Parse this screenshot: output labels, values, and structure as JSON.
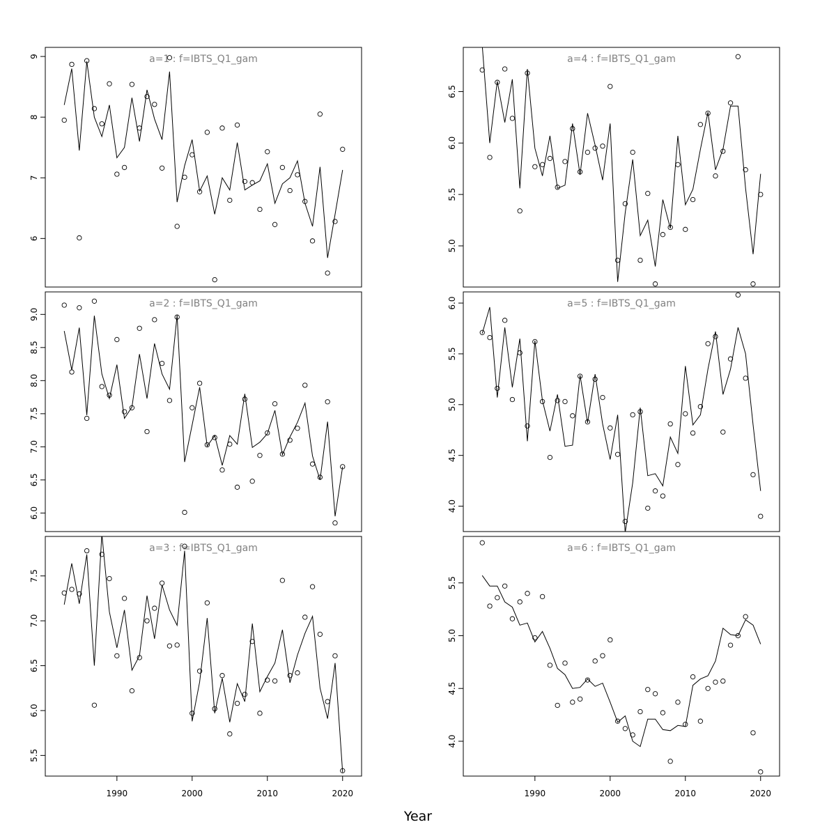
{
  "xlabel": "Year",
  "colors": {
    "title": "#808080",
    "line": "#000000",
    "point": "#000000",
    "axis": "#000000"
  },
  "chart_data": [
    {
      "type": "line",
      "title": "a=1  :  f=IBTS_Q1_gam",
      "xlim": [
        1983,
        2020
      ],
      "ylim": [
        5.2,
        9.15
      ],
      "yticks": [
        "6",
        "7",
        "8",
        "9"
      ],
      "xticks": [],
      "x": [
        1983,
        1984,
        1985,
        1986,
        1987,
        1988,
        1989,
        1990,
        1991,
        1992,
        1993,
        1994,
        1995,
        1996,
        1997,
        1998,
        1999,
        2000,
        2001,
        2002,
        2003,
        2004,
        2005,
        2006,
        2007,
        2008,
        2009,
        2010,
        2011,
        2012,
        2013,
        2014,
        2015,
        2016,
        2017,
        2018,
        2019,
        2020
      ],
      "series": [
        {
          "type": "line",
          "values": [
            8.2,
            8.8,
            7.45,
            8.92,
            8.0,
            7.68,
            8.2,
            7.33,
            7.5,
            8.32,
            7.6,
            8.45,
            7.97,
            7.63,
            8.75,
            6.6,
            7.2,
            7.63,
            6.78,
            7.03,
            6.4,
            7.0,
            6.8,
            7.58,
            6.8,
            6.88,
            6.95,
            7.23,
            6.58,
            6.9,
            7.0,
            7.28,
            6.58,
            6.2,
            7.18,
            5.68,
            6.4,
            7.13
          ]
        },
        {
          "type": "scatter",
          "values": [
            7.95,
            8.87,
            6.01,
            8.93,
            8.14,
            7.89,
            8.55,
            7.06,
            7.17,
            8.54,
            7.82,
            8.34,
            8.21,
            7.16,
            8.98,
            6.2,
            7.01,
            7.38,
            6.77,
            7.75,
            5.32,
            7.82,
            6.63,
            7.87,
            6.94,
            6.92,
            6.48,
            7.43,
            6.23,
            7.17,
            6.79,
            7.05,
            6.61,
            5.96,
            8.05,
            5.43,
            6.28,
            7.47
          ]
        }
      ]
    },
    {
      "type": "line",
      "title": "a=4  :  f=IBTS_Q1_gam",
      "xlim": [
        1983,
        2020
      ],
      "ylim": [
        4.6,
        6.93
      ],
      "yticks": [
        "5.0",
        "5.5",
        "6.0",
        "6.5"
      ],
      "xticks": [],
      "x": [
        1983,
        1984,
        1985,
        1986,
        1987,
        1988,
        1989,
        1990,
        1991,
        1992,
        1993,
        1994,
        1995,
        1996,
        1997,
        1998,
        1999,
        2000,
        2001,
        2002,
        2003,
        2004,
        2005,
        2006,
        2007,
        2008,
        2009,
        2010,
        2011,
        2012,
        2013,
        2014,
        2015,
        2016,
        2017,
        2018,
        2019,
        2020
      ],
      "series": [
        {
          "type": "line",
          "values": [
            6.95,
            6.0,
            6.6,
            6.2,
            6.62,
            5.56,
            6.72,
            5.95,
            5.68,
            6.07,
            5.56,
            5.59,
            6.19,
            5.69,
            6.29,
            5.98,
            5.64,
            6.19,
            4.65,
            5.32,
            5.84,
            5.1,
            5.25,
            4.8,
            5.45,
            5.17,
            6.07,
            5.4,
            5.55,
            5.94,
            6.3,
            5.74,
            5.94,
            6.36,
            6.36,
            5.56,
            4.92,
            5.7
          ]
        },
        {
          "type": "scatter",
          "values": [
            6.71,
            5.86,
            6.59,
            6.72,
            6.24,
            5.34,
            6.68,
            5.77,
            5.79,
            5.85,
            5.57,
            5.82,
            6.14,
            5.72,
            5.91,
            5.95,
            5.97,
            6.55,
            4.86,
            5.41,
            5.91,
            4.86,
            5.51,
            4.63,
            5.11,
            5.18,
            5.79,
            5.16,
            5.45,
            6.18,
            6.29,
            5.68,
            5.92,
            6.39,
            6.84,
            5.74,
            4.63,
            5.5
          ]
        }
      ]
    },
    {
      "type": "line",
      "title": "a=2  :  f=IBTS_Q1_gam",
      "xlim": [
        1983,
        2020
      ],
      "ylim": [
        5.72,
        9.34
      ],
      "yticks": [
        "6.0",
        "6.5",
        "7.0",
        "7.5",
        "8.0",
        "8.5",
        "9.0"
      ],
      "xticks": [],
      "x": [
        1983,
        1984,
        1985,
        1986,
        1987,
        1988,
        1989,
        1990,
        1991,
        1992,
        1993,
        1994,
        1995,
        1996,
        1997,
        1998,
        1999,
        2000,
        2001,
        2002,
        2003,
        2004,
        2005,
        2006,
        2007,
        2008,
        2009,
        2010,
        2011,
        2012,
        2013,
        2014,
        2015,
        2016,
        2017,
        2018,
        2019,
        2020
      ],
      "series": [
        {
          "type": "line",
          "values": [
            8.75,
            8.16,
            8.8,
            7.48,
            8.98,
            8.1,
            7.73,
            8.24,
            7.43,
            7.6,
            8.4,
            7.73,
            8.56,
            8.1,
            7.87,
            8.99,
            6.77,
            7.33,
            7.9,
            7.01,
            7.17,
            6.72,
            7.17,
            7.04,
            7.8,
            6.99,
            7.07,
            7.2,
            7.55,
            6.88,
            7.15,
            7.37,
            7.66,
            6.86,
            6.5,
            7.38,
            5.95,
            6.7
          ]
        },
        {
          "type": "scatter",
          "values": [
            9.14,
            8.13,
            9.1,
            7.43,
            9.2,
            7.91,
            7.78,
            8.62,
            7.53,
            7.59,
            8.79,
            7.23,
            8.92,
            8.26,
            7.7,
            8.96,
            6.01,
            7.59,
            7.96,
            7.03,
            7.14,
            6.65,
            7.04,
            6.39,
            7.72,
            6.48,
            6.87,
            7.21,
            7.65,
            6.89,
            7.1,
            7.28,
            7.93,
            6.74,
            6.54,
            7.68,
            5.85,
            6.7
          ]
        }
      ]
    },
    {
      "type": "line",
      "title": "a=5  :  f=IBTS_Q1_gam",
      "xlim": [
        1983,
        2020
      ],
      "ylim": [
        3.75,
        6.11
      ],
      "yticks": [
        "4.0",
        "4.5",
        "5.0",
        "5.5",
        "6.0"
      ],
      "xticks": [],
      "x": [
        1983,
        1984,
        1985,
        1986,
        1987,
        1988,
        1989,
        1990,
        1991,
        1992,
        1993,
        1994,
        1995,
        1996,
        1997,
        1998,
        1999,
        2000,
        2001,
        2002,
        2003,
        2004,
        2005,
        2006,
        2007,
        2008,
        2009,
        2010,
        2011,
        2012,
        2013,
        2014,
        2015,
        2016,
        2017,
        2018,
        2019,
        2020
      ],
      "series": [
        {
          "type": "line",
          "values": [
            5.7,
            5.96,
            5.07,
            5.76,
            5.17,
            5.65,
            4.64,
            5.63,
            5.04,
            4.74,
            5.1,
            4.59,
            4.6,
            5.29,
            4.82,
            5.3,
            4.81,
            4.46,
            4.9,
            3.74,
            4.23,
            4.97,
            4.3,
            4.32,
            4.2,
            4.68,
            4.52,
            5.38,
            4.8,
            4.9,
            5.35,
            5.72,
            5.1,
            5.35,
            5.76,
            5.5,
            4.8,
            4.15
          ]
        },
        {
          "type": "scatter",
          "values": [
            5.71,
            5.66,
            5.16,
            5.83,
            5.05,
            5.51,
            4.79,
            5.62,
            5.03,
            4.48,
            5.04,
            5.03,
            4.89,
            5.28,
            4.83,
            5.25,
            5.07,
            4.77,
            4.51,
            3.85,
            4.9,
            4.93,
            3.98,
            4.15,
            4.1,
            4.81,
            4.41,
            4.91,
            4.72,
            4.98,
            5.6,
            5.67,
            4.73,
            5.45,
            6.08,
            5.26,
            4.31,
            3.9
          ]
        }
      ]
    },
    {
      "type": "line",
      "title": "a=3  :  f=IBTS_Q1_gam",
      "xlim": [
        1983,
        2020
      ],
      "ylim": [
        5.27,
        7.94
      ],
      "yticks": [
        "5.5",
        "6.0",
        "6.5",
        "7.0",
        "7.5"
      ],
      "xticks": [
        "1990",
        "2000",
        "2010",
        "2020"
      ],
      "x": [
        1983,
        1984,
        1985,
        1986,
        1987,
        1988,
        1989,
        1990,
        1991,
        1992,
        1993,
        1994,
        1995,
        1996,
        1997,
        1998,
        1999,
        2000,
        2001,
        2002,
        2003,
        2004,
        2005,
        2006,
        2007,
        2008,
        2009,
        2010,
        2011,
        2012,
        2013,
        2014,
        2015,
        2016,
        2017,
        2018,
        2019,
        2020
      ],
      "series": [
        {
          "type": "line",
          "values": [
            7.18,
            7.64,
            7.19,
            7.74,
            6.5,
            7.97,
            7.1,
            6.7,
            7.12,
            6.45,
            6.61,
            7.28,
            6.8,
            7.4,
            7.12,
            6.95,
            7.78,
            5.88,
            6.32,
            7.03,
            5.97,
            6.36,
            5.87,
            6.3,
            6.1,
            6.97,
            6.21,
            6.38,
            6.53,
            6.9,
            6.31,
            6.62,
            6.86,
            7.05,
            6.25,
            5.91,
            6.53,
            5.31
          ]
        },
        {
          "type": "scatter",
          "values": [
            7.31,
            7.35,
            7.3,
            7.78,
            6.06,
            7.74,
            7.47,
            6.61,
            7.25,
            6.22,
            6.59,
            7.0,
            7.14,
            7.42,
            6.72,
            6.73,
            7.83,
            5.97,
            6.44,
            7.2,
            6.02,
            6.39,
            5.74,
            6.08,
            6.18,
            6.77,
            5.97,
            6.34,
            6.33,
            7.45,
            6.39,
            6.42,
            7.04,
            7.38,
            6.85,
            6.1,
            6.61,
            5.33
          ]
        }
      ]
    },
    {
      "type": "line",
      "title": "a=6  :  f=IBTS_Q1_gam",
      "xlim": [
        1983,
        2020
      ],
      "ylim": [
        3.67,
        5.94
      ],
      "yticks": [
        "4.0",
        "4.5",
        "5.0",
        "5.5"
      ],
      "xticks": [
        "1990",
        "2000",
        "2010",
        "2020"
      ],
      "x": [
        1983,
        1984,
        1985,
        1986,
        1987,
        1988,
        1989,
        1990,
        1991,
        1992,
        1993,
        1994,
        1995,
        1996,
        1997,
        1998,
        1999,
        2000,
        2001,
        2002,
        2003,
        2004,
        2005,
        2006,
        2007,
        2008,
        2009,
        2010,
        2011,
        2012,
        2013,
        2014,
        2015,
        2016,
        2017,
        2018,
        2019,
        2020
      ],
      "series": [
        {
          "type": "line",
          "values": [
            5.57,
            5.47,
            5.47,
            5.32,
            5.27,
            5.1,
            5.12,
            4.94,
            5.04,
            4.88,
            4.69,
            4.63,
            4.5,
            4.51,
            4.59,
            4.52,
            4.55,
            4.37,
            4.18,
            4.24,
            4.0,
            3.95,
            4.21,
            4.21,
            4.11,
            4.1,
            4.15,
            4.14,
            4.53,
            4.59,
            4.62,
            4.76,
            5.07,
            5.01,
            5.0,
            5.15,
            5.1,
            4.92
          ]
        },
        {
          "type": "scatter",
          "values": [
            5.88,
            5.28,
            5.36,
            5.47,
            5.16,
            5.32,
            5.4,
            4.98,
            5.37,
            4.72,
            4.34,
            4.74,
            4.37,
            4.4,
            4.58,
            4.76,
            4.81,
            4.96,
            4.19,
            4.12,
            4.06,
            4.28,
            4.49,
            4.45,
            4.27,
            3.81,
            4.37,
            4.16,
            4.61,
            4.19,
            4.5,
            4.56,
            4.57,
            4.91,
            5.0,
            5.18,
            4.08,
            3.71
          ]
        }
      ]
    }
  ]
}
